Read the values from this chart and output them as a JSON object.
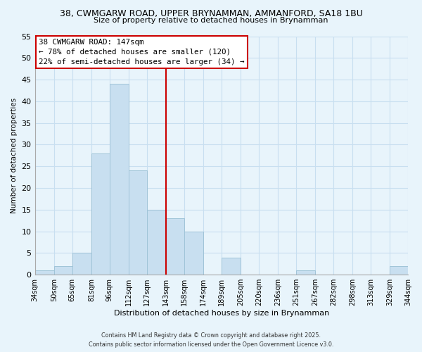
{
  "title": "38, CWMGARW ROAD, UPPER BRYNAMMAN, AMMANFORD, SA18 1BU",
  "subtitle": "Size of property relative to detached houses in Brynamman",
  "xlabel": "Distribution of detached houses by size in Brynamman",
  "ylabel": "Number of detached properties",
  "bar_color": "#c8dff0",
  "bar_edge_color": "#a0c4d8",
  "grid_color": "#c8dff0",
  "vline_color": "#cc0000",
  "vline_x": 143,
  "bin_edges": [
    34,
    50,
    65,
    81,
    96,
    112,
    127,
    143,
    158,
    174,
    189,
    205,
    220,
    236,
    251,
    267,
    282,
    298,
    313,
    329,
    344
  ],
  "bin_labels": [
    "34sqm",
    "50sqm",
    "65sqm",
    "81sqm",
    "96sqm",
    "112sqm",
    "127sqm",
    "143sqm",
    "158sqm",
    "174sqm",
    "189sqm",
    "205sqm",
    "220sqm",
    "236sqm",
    "251sqm",
    "267sqm",
    "282sqm",
    "298sqm",
    "313sqm",
    "329sqm",
    "344sqm"
  ],
  "counts": [
    1,
    2,
    5,
    28,
    44,
    24,
    15,
    13,
    10,
    0,
    4,
    0,
    0,
    0,
    1,
    0,
    0,
    0,
    0,
    2
  ],
  "ylim": [
    0,
    55
  ],
  "yticks": [
    0,
    5,
    10,
    15,
    20,
    25,
    30,
    35,
    40,
    45,
    50,
    55
  ],
  "annotation_title": "38 CWMGARW ROAD: 147sqm",
  "annotation_line1": "← 78% of detached houses are smaller (120)",
  "annotation_line2": "22% of semi-detached houses are larger (34) →",
  "annotation_box_color": "#ffffff",
  "annotation_box_edge": "#cc0000",
  "footnote1": "Contains HM Land Registry data © Crown copyright and database right 2025.",
  "footnote2": "Contains public sector information licensed under the Open Government Licence v3.0.",
  "background_color": "#e8f4fb"
}
